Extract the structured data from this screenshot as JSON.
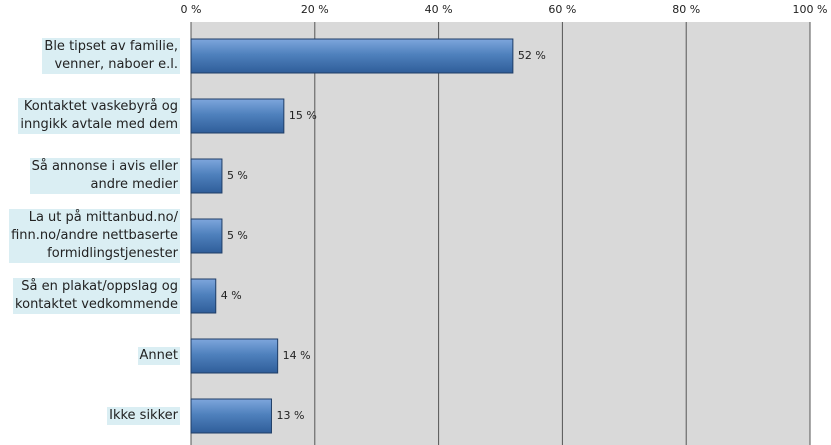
{
  "chart_data": {
    "type": "bar",
    "orientation": "horizontal",
    "categories": [
      "Ble tipset av familie,\nvenner, naboer e.l.",
      "Kontaktet vaskebyrå og\ninngikk avtale med dem",
      "Så annonse i avis eller\nandre medier",
      "La ut på mittanbud.no/\nfinn.no/andre nettbaserte\nformidlingstjenester",
      "Så en plakat/oppslag og\nkontaktet vedkommende",
      "Annet",
      "Ikke sikker"
    ],
    "values": [
      52,
      15,
      5,
      5,
      4,
      14,
      13
    ],
    "value_labels": [
      "52 %",
      "15 %",
      "5 %",
      "5 %",
      "4 %",
      "14 %",
      "13 %"
    ],
    "color": "#4f81bd",
    "xlim": [
      0,
      100
    ],
    "xticks": [
      {
        "value": 0,
        "label": "0 %"
      },
      {
        "value": 20,
        "label": "20 %"
      },
      {
        "value": 40,
        "label": "40 %"
      },
      {
        "value": 60,
        "label": "60 %"
      },
      {
        "value": 80,
        "label": "80 %"
      },
      {
        "value": 100,
        "label": "100 %"
      }
    ],
    "grid": true
  }
}
